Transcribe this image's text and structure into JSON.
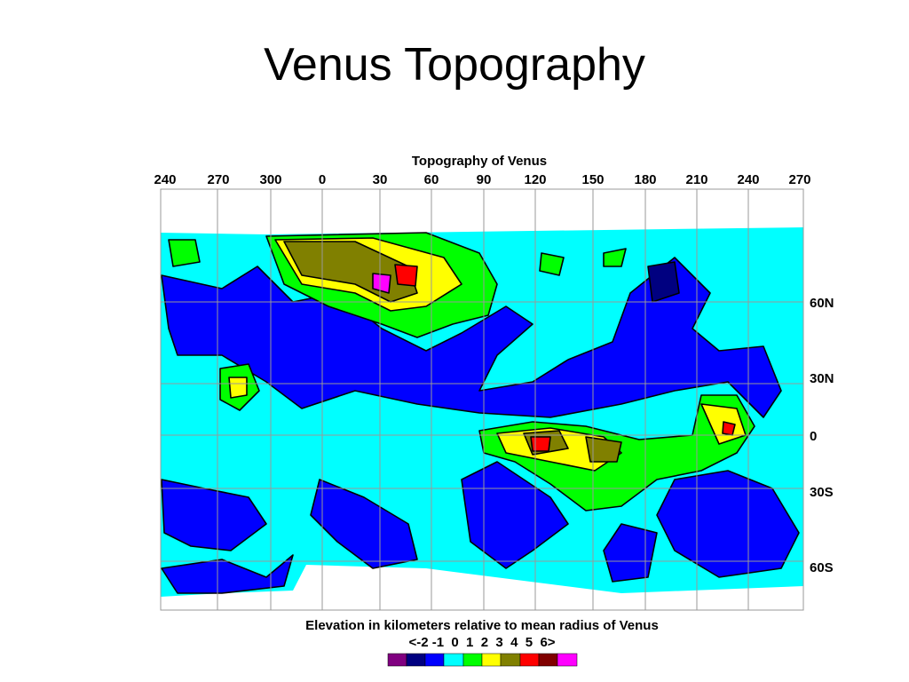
{
  "header": {
    "title": "Venus Topography"
  },
  "map": {
    "title": "Topography of Venus",
    "longitude_labels": [
      "240",
      "270",
      "300",
      "0",
      "30",
      "60",
      "90",
      "120",
      "150",
      "180",
      "210",
      "240",
      "270"
    ],
    "latitude_labels": [
      "60N",
      "30N",
      "0",
      "30S",
      "60S"
    ],
    "caption": "Elevation in kilometers relative to mean radius of Venus",
    "legend_scale": "<-2 -1  0  1  2  3  4  5  6>"
  }
}
